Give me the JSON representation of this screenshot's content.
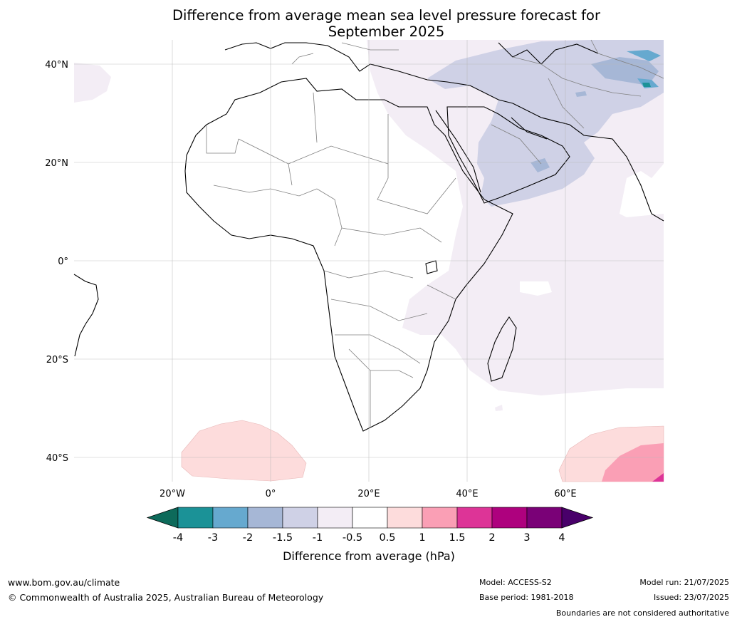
{
  "title": {
    "line1": "Difference from average mean sea level pressure forecast for",
    "line2": "September 2025"
  },
  "axes": {
    "lat_labels": [
      "40°N",
      "20°N",
      "0°",
      "20°S",
      "40°S"
    ],
    "lon_labels": [
      "20°W",
      "0°",
      "20°E",
      "40°E",
      "60°E"
    ],
    "gridlines": true
  },
  "legend": {
    "label": "Difference from average (hPa)",
    "ticks": [
      "-4",
      "-3",
      "-2",
      "-1.5",
      "-1",
      "-0.5",
      "0.5",
      "1",
      "1.5",
      "2",
      "3",
      "4"
    ],
    "colors": {
      "below_-4": "#0d6a5a",
      "-4_-3": "#1b9297",
      "-3_-2": "#66a9cf",
      "-2_-1.5": "#a6b7d6",
      "-1.5_-1": "#cfd1e6",
      "-1_-0.5": "#f3edf5",
      "-0.5_0.5": "#ffffff",
      "0.5_1": "#fddcdc",
      "1_1.5": "#fa9fb5",
      "1.5_2": "#dd3497",
      "2_3": "#ae017e",
      "3_4": "#7a0177",
      "above_4": "#49006a"
    }
  },
  "footer": {
    "website": "www.bom.gov.au/climate",
    "copyright": "© Commonwealth of Australia 2025, Australian Bureau of Meteorology",
    "model": "Model: ACCESS-S2",
    "base_period": "Base period: 1981-2018",
    "model_run": "Model run: 21/07/2025",
    "issued": "Issued: 23/07/2025",
    "disclaimer": "Boundaries are not considered authoritative"
  }
}
